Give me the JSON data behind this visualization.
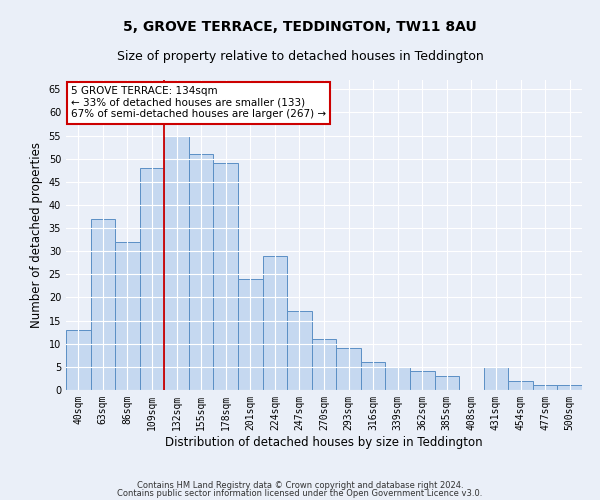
{
  "title": "5, GROVE TERRACE, TEDDINGTON, TW11 8AU",
  "subtitle": "Size of property relative to detached houses in Teddington",
  "xlabel": "Distribution of detached houses by size in Teddington",
  "ylabel": "Number of detached properties",
  "bar_labels": [
    "40sqm",
    "63sqm",
    "86sqm",
    "109sqm",
    "132sqm",
    "155sqm",
    "178sqm",
    "201sqm",
    "224sqm",
    "247sqm",
    "270sqm",
    "293sqm",
    "316sqm",
    "339sqm",
    "362sqm",
    "385sqm",
    "408sqm",
    "431sqm",
    "454sqm",
    "477sqm",
    "500sqm"
  ],
  "bar_values": [
    13,
    37,
    32,
    48,
    55,
    51,
    49,
    24,
    29,
    17,
    11,
    9,
    6,
    5,
    4,
    3,
    0,
    5,
    2,
    1,
    1
  ],
  "bar_color": "#c5d8f0",
  "bar_edge_color": "#5b8fc5",
  "highlight_index": 4,
  "highlight_line_color": "#cc0000",
  "annotation_text": "5 GROVE TERRACE: 134sqm\n← 33% of detached houses are smaller (133)\n67% of semi-detached houses are larger (267) →",
  "annotation_box_color": "#ffffff",
  "annotation_box_edge": "#cc0000",
  "ylim": [
    0,
    67
  ],
  "yticks": [
    0,
    5,
    10,
    15,
    20,
    25,
    30,
    35,
    40,
    45,
    50,
    55,
    60,
    65
  ],
  "bg_color": "#eaeff8",
  "plot_bg_color": "#eaeff8",
  "grid_color": "#ffffff",
  "footer1": "Contains HM Land Registry data © Crown copyright and database right 2024.",
  "footer2": "Contains public sector information licensed under the Open Government Licence v3.0.",
  "title_fontsize": 10,
  "subtitle_fontsize": 9,
  "tick_fontsize": 7,
  "ylabel_fontsize": 8.5,
  "xlabel_fontsize": 8.5,
  "annotation_fontsize": 7.5,
  "footer_fontsize": 6
}
